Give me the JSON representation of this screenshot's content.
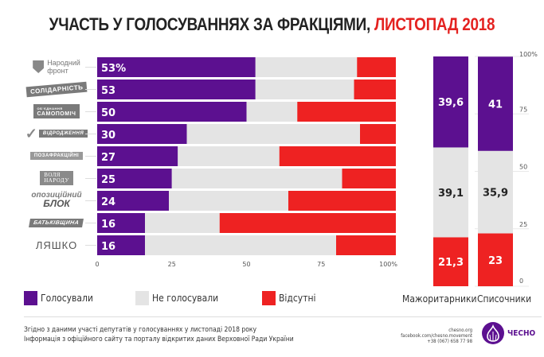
{
  "title": {
    "main": "УЧАСТЬ У ГОЛОСУВАННЯХ ЗА ФРАКЦІЯМИ, ",
    "highlight": "ЛИСТОПАД 2018"
  },
  "colors": {
    "voted": "#5c1090",
    "not_voted": "#e4e4e4",
    "absent": "#ee2222",
    "highlight": "#e42220"
  },
  "factions": [
    {
      "name": "Народний фронт"
    },
    {
      "name": "Солідарність"
    },
    {
      "name": "Об'єднання Самопоміч"
    },
    {
      "name": "Відродження"
    },
    {
      "name": "Позафракційні"
    },
    {
      "name": "Воля народу"
    },
    {
      "name": "Опозиційний блок"
    },
    {
      "name": "Батьківщина"
    },
    {
      "name": "Радикальна партія Ляшка"
    }
  ],
  "legend": [
    {
      "label": "Голосували",
      "color": "#5c1090"
    },
    {
      "label": "Не голосували",
      "color": "#e4e4e4"
    },
    {
      "label": "Відсутні",
      "color": "#ee2222"
    }
  ],
  "chart_data": [
    {
      "type": "bar",
      "orientation": "horizontal-stacked",
      "categories": [
        "Народний фронт",
        "Солідарність",
        "Самопоміч",
        "Відродження",
        "Позафракційні",
        "Воля народу",
        "Опозиційний блок",
        "Батьківщина",
        "Радикальна партія Ляшка"
      ],
      "series": [
        {
          "name": "Голосували",
          "values": [
            53,
            53,
            50,
            30,
            27,
            25,
            24,
            16,
            16
          ]
        },
        {
          "name": "Не голосували",
          "values": [
            34,
            33,
            17,
            58,
            34,
            57,
            40,
            25,
            64
          ]
        },
        {
          "name": "Відсутні",
          "values": [
            13,
            14,
            33,
            12,
            39,
            18,
            36,
            59,
            20
          ]
        }
      ],
      "data_labels": [
        "53%",
        "53",
        "50",
        "30",
        "27",
        "25",
        "24",
        "16",
        "16"
      ],
      "xlim": [
        0,
        100
      ],
      "xticks": [
        "0",
        "25",
        "50",
        "75",
        "100%"
      ],
      "legend_position": "bottom"
    },
    {
      "type": "bar",
      "orientation": "vertical-stacked",
      "categories": [
        "Мажоритарники",
        "Списочники"
      ],
      "series": [
        {
          "name": "Відсутні",
          "values": [
            21.3,
            23
          ]
        },
        {
          "name": "Не голосували",
          "values": [
            39.1,
            35.9
          ]
        },
        {
          "name": "Голосували",
          "values": [
            39.6,
            41
          ]
        }
      ],
      "data_labels": {
        "Голосували": [
          "39,6",
          "41"
        ],
        "Не голосували": [
          "39,1",
          "35,9"
        ],
        "Відсутні": [
          "21,3",
          "23"
        ]
      },
      "ylim": [
        0,
        100
      ],
      "yticks": [
        "0",
        "25",
        "50",
        "75",
        "100%"
      ]
    }
  ],
  "footer": {
    "line1": "Згідно з даними участі депутатів у голосуваннях у листопаді 2018 року",
    "line2": "Інформація з офіційного сайту та порталу відкритих даних Верховної Ради України",
    "contacts": [
      "chesno.org",
      "facebook.com/chesno.movement",
      "+38 (067) 658 77 98"
    ],
    "brand": "ЧЕСНО"
  },
  "logos": {
    "nf": [
      "Народний",
      "фронт"
    ],
    "sol": "СОЛІДАРНІСТЬ",
    "sam": [
      "ОБ'ЄДНАННЯ",
      "САМОПОМІЧ"
    ],
    "vid": "ВІДРОДЖЕННЯ",
    "poza": "ПОЗАФРАКЦІЙНІ",
    "vol": [
      "ВОЛЯ",
      "НАРОДУ"
    ],
    "op": [
      "опозиційний",
      "БЛОК"
    ],
    "bat": "БАТЬКІВЩИНА",
    "lya": "ЛЯШКО"
  }
}
